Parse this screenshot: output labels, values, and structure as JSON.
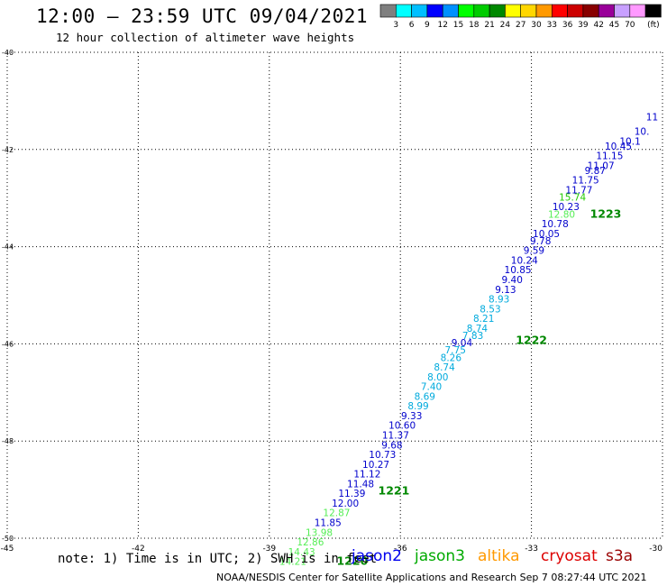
{
  "header": {
    "title": "12:00 – 23:59 UTC 09/04/2021",
    "subtitle": "12 hour collection of altimeter wave heights"
  },
  "colorbar": {
    "unit": "(ft)",
    "bins": [
      {
        "label": "",
        "color": "#7f7f7f"
      },
      {
        "label": "3",
        "color": "#00ffff"
      },
      {
        "label": "6",
        "color": "#00bfff"
      },
      {
        "label": "9",
        "color": "#0000ff"
      },
      {
        "label": "12",
        "color": "#0090ff"
      },
      {
        "label": "15",
        "color": "#00ff00"
      },
      {
        "label": "18",
        "color": "#00cc00"
      },
      {
        "label": "21",
        "color": "#008800"
      },
      {
        "label": "24",
        "color": "#ffff00"
      },
      {
        "label": "27",
        "color": "#ffd700"
      },
      {
        "label": "30",
        "color": "#ff9900"
      },
      {
        "label": "33",
        "color": "#ff0000"
      },
      {
        "label": "36",
        "color": "#cc0000"
      },
      {
        "label": "39",
        "color": "#880000"
      },
      {
        "label": "42",
        "color": "#990099"
      },
      {
        "label": "45",
        "color": "#c8a0ff"
      },
      {
        "label": "70",
        "color": "#ff99ff"
      },
      {
        "label": "",
        "color": "#000000"
      }
    ]
  },
  "chart_data": {
    "type": "scatter",
    "xlim": [
      -45,
      -30
    ],
    "ylim": [
      -50,
      -40
    ],
    "x_ticks": [
      -45,
      -42,
      -39,
      -36,
      -33,
      -30
    ],
    "x_tick_labels": [
      "-45",
      "-42",
      "-39",
      "-36",
      "-33",
      "-30"
    ],
    "y_ticks": [
      -40,
      -42,
      -44,
      -46,
      -48,
      -50
    ],
    "y_tick_labels": [
      "-40",
      "-42",
      "-44",
      "-46",
      "-48",
      "-50"
    ],
    "grid": true,
    "series_colors": {
      "dblue": "#0000cc",
      "lblue": "#00aadd",
      "lgreen": "#55ee55",
      "green": "#22cc00"
    },
    "points": [
      {
        "x": -30.1,
        "y": -41.4,
        "label": "11",
        "c": "dblue"
      },
      {
        "x": -30.3,
        "y": -41.7,
        "label": "10.",
        "c": "dblue"
      },
      {
        "x": -30.5,
        "y": -41.9,
        "label": "10.1",
        "c": "dblue"
      },
      {
        "x": -30.7,
        "y": -42.0,
        "label": "10.45",
        "c": "dblue"
      },
      {
        "x": -30.9,
        "y": -42.2,
        "label": "11.15",
        "c": "dblue"
      },
      {
        "x": -31.1,
        "y": -42.4,
        "label": "11.07",
        "c": "dblue"
      },
      {
        "x": -31.3,
        "y": -42.5,
        "label": "9.87",
        "c": "dblue"
      },
      {
        "x": -31.45,
        "y": -42.7,
        "label": "11.75",
        "c": "dblue"
      },
      {
        "x": -31.6,
        "y": -42.9,
        "label": "11.77",
        "c": "dblue"
      },
      {
        "x": -31.75,
        "y": -43.05,
        "label": "15.74",
        "c": "green"
      },
      {
        "x": -31.9,
        "y": -43.25,
        "label": "10.23",
        "c": "dblue"
      },
      {
        "x": -32.0,
        "y": -43.4,
        "label": "12.80",
        "c": "lgreen"
      },
      {
        "x": -32.15,
        "y": -43.6,
        "label": "10.78",
        "c": "dblue"
      },
      {
        "x": -32.35,
        "y": -43.8,
        "label": "10.05",
        "c": "dblue"
      },
      {
        "x": -32.55,
        "y": -43.95,
        "label": "9.78",
        "c": "dblue"
      },
      {
        "x": -32.7,
        "y": -44.15,
        "label": "9.59",
        "c": "dblue"
      },
      {
        "x": -32.85,
        "y": -44.35,
        "label": "10.24",
        "c": "dblue"
      },
      {
        "x": -33.0,
        "y": -44.55,
        "label": "10.85",
        "c": "dblue"
      },
      {
        "x": -33.2,
        "y": -44.75,
        "label": "9.40",
        "c": "dblue"
      },
      {
        "x": -33.35,
        "y": -44.95,
        "label": "9.13",
        "c": "dblue"
      },
      {
        "x": -33.5,
        "y": -45.15,
        "label": "8.93",
        "c": "lblue"
      },
      {
        "x": -33.7,
        "y": -45.35,
        "label": "8.53",
        "c": "lblue"
      },
      {
        "x": -33.85,
        "y": -45.55,
        "label": "8.21",
        "c": "lblue"
      },
      {
        "x": -34.0,
        "y": -45.75,
        "label": "8.74",
        "c": "lblue"
      },
      {
        "x": -34.1,
        "y": -45.9,
        "label": "7.83",
        "c": "lblue"
      },
      {
        "x": -34.35,
        "y": -46.05,
        "label": "9.04",
        "c": "dblue"
      },
      {
        "x": -34.5,
        "y": -46.2,
        "label": "7.75",
        "c": "lblue"
      },
      {
        "x": -34.6,
        "y": -46.35,
        "label": "8.26",
        "c": "lblue"
      },
      {
        "x": -34.75,
        "y": -46.55,
        "label": "8.74",
        "c": "lblue"
      },
      {
        "x": -34.9,
        "y": -46.75,
        "label": "8.00",
        "c": "lblue"
      },
      {
        "x": -35.05,
        "y": -46.95,
        "label": "7.40",
        "c": "lblue"
      },
      {
        "x": -35.2,
        "y": -47.15,
        "label": "8.69",
        "c": "lblue"
      },
      {
        "x": -35.35,
        "y": -47.35,
        "label": "8.99",
        "c": "lblue"
      },
      {
        "x": -35.5,
        "y": -47.55,
        "label": "9.33",
        "c": "dblue"
      },
      {
        "x": -35.65,
        "y": -47.75,
        "label": "10.60",
        "c": "dblue"
      },
      {
        "x": -35.8,
        "y": -47.95,
        "label": "11.37",
        "c": "dblue"
      },
      {
        "x": -35.95,
        "y": -48.15,
        "label": "9.68",
        "c": "dblue"
      },
      {
        "x": -36.1,
        "y": -48.35,
        "label": "10.73",
        "c": "dblue"
      },
      {
        "x": -36.25,
        "y": -48.55,
        "label": "10.27",
        "c": "dblue"
      },
      {
        "x": -36.45,
        "y": -48.75,
        "label": "11.12",
        "c": "dblue"
      },
      {
        "x": -36.6,
        "y": -48.95,
        "label": "11.48",
        "c": "dblue"
      },
      {
        "x": -36.8,
        "y": -49.15,
        "label": "11.39",
        "c": "dblue"
      },
      {
        "x": -36.95,
        "y": -49.35,
        "label": "12.00",
        "c": "dblue"
      },
      {
        "x": -37.15,
        "y": -49.55,
        "label": "12.87",
        "c": "lgreen"
      },
      {
        "x": -37.35,
        "y": -49.75,
        "label": "11.85",
        "c": "dblue"
      },
      {
        "x": -37.55,
        "y": -49.95,
        "label": "13.98",
        "c": "lgreen"
      },
      {
        "x": -37.75,
        "y": -50.15,
        "label": "12.86",
        "c": "lgreen"
      },
      {
        "x": -37.95,
        "y": -50.35,
        "label": "14.43",
        "c": "lgreen"
      },
      {
        "x": -38.15,
        "y": -50.55,
        "label": "14.21",
        "c": "lgreen"
      }
    ],
    "time_labels": [
      {
        "x": -31.3,
        "y": -43.4,
        "label": "1223"
      },
      {
        "x": -33.0,
        "y": -46.0,
        "label": "1222"
      },
      {
        "x": -36.15,
        "y": -49.1,
        "label": "1221"
      },
      {
        "x": -37.1,
        "y": -50.55,
        "label": "1220"
      }
    ]
  },
  "footer": {
    "note": "note: 1) Time is in UTC; 2) SWH is in feet",
    "satellites": [
      {
        "name": "jason2",
        "color": "#0000ee"
      },
      {
        "name": "jason3",
        "color": "#00aa00"
      },
      {
        "name": "altika",
        "color": "#ff9900"
      },
      {
        "name": "cryosat",
        "color": "#dd0000"
      },
      {
        "name": "s3a",
        "color": "#990000"
      }
    ],
    "credit": "NOAA/NESDIS Center for Satellite Applications and Research   Sep  7 08:27:44 UTC 2021"
  }
}
